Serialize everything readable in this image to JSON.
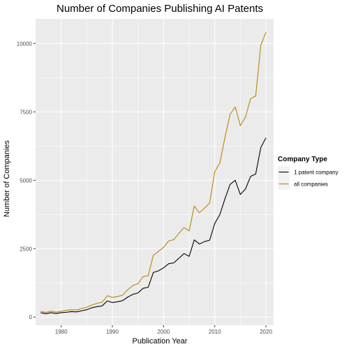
{
  "chart_data": {
    "type": "line",
    "title": "Number of Companies Publishing AI Patents",
    "xlabel": "Publication Year",
    "ylabel": "Number of Companies",
    "xlim": [
      1975,
      2021.5
    ],
    "ylim": [
      -300,
      10900
    ],
    "x_ticks": [
      1980,
      1990,
      2000,
      2010,
      2020
    ],
    "y_ticks": [
      0,
      2500,
      5000,
      7500,
      10000
    ],
    "grid": true,
    "legend": {
      "title": "Company Type",
      "placement": "right"
    },
    "x": [
      1976,
      1977,
      1978,
      1979,
      1980,
      1981,
      1982,
      1983,
      1984,
      1985,
      1986,
      1987,
      1988,
      1989,
      1990,
      1991,
      1992,
      1993,
      1994,
      1995,
      1996,
      1997,
      1998,
      1999,
      2000,
      2001,
      2002,
      2003,
      2004,
      2005,
      2006,
      2007,
      2008,
      2009,
      2010,
      2011,
      2012,
      2013,
      2014,
      2015,
      2016,
      2017,
      2018,
      2019,
      2020
    ],
    "series": [
      {
        "name": "1 patent company",
        "color": "#000000",
        "values": [
          160,
          120,
          160,
          130,
          160,
          175,
          200,
          190,
          230,
          270,
          340,
          380,
          410,
          590,
          530,
          560,
          600,
          730,
          830,
          880,
          1050,
          1090,
          1630,
          1690,
          1800,
          1950,
          1980,
          2150,
          2320,
          2220,
          2820,
          2670,
          2760,
          2810,
          3420,
          3750,
          4330,
          4850,
          5000,
          4480,
          4680,
          5140,
          5230,
          6200,
          6550
        ]
      },
      {
        "name": "all companies",
        "color": "#b8860b",
        "values": [
          210,
          170,
          220,
          180,
          210,
          240,
          270,
          260,
          310,
          360,
          440,
          500,
          540,
          780,
          720,
          750,
          800,
          1000,
          1150,
          1220,
          1480,
          1510,
          2260,
          2400,
          2550,
          2780,
          2830,
          3060,
          3270,
          3150,
          4060,
          3810,
          3980,
          4170,
          5310,
          5640,
          6570,
          7410,
          7680,
          7000,
          7310,
          7980,
          8080,
          9940,
          10410
        ]
      }
    ]
  }
}
